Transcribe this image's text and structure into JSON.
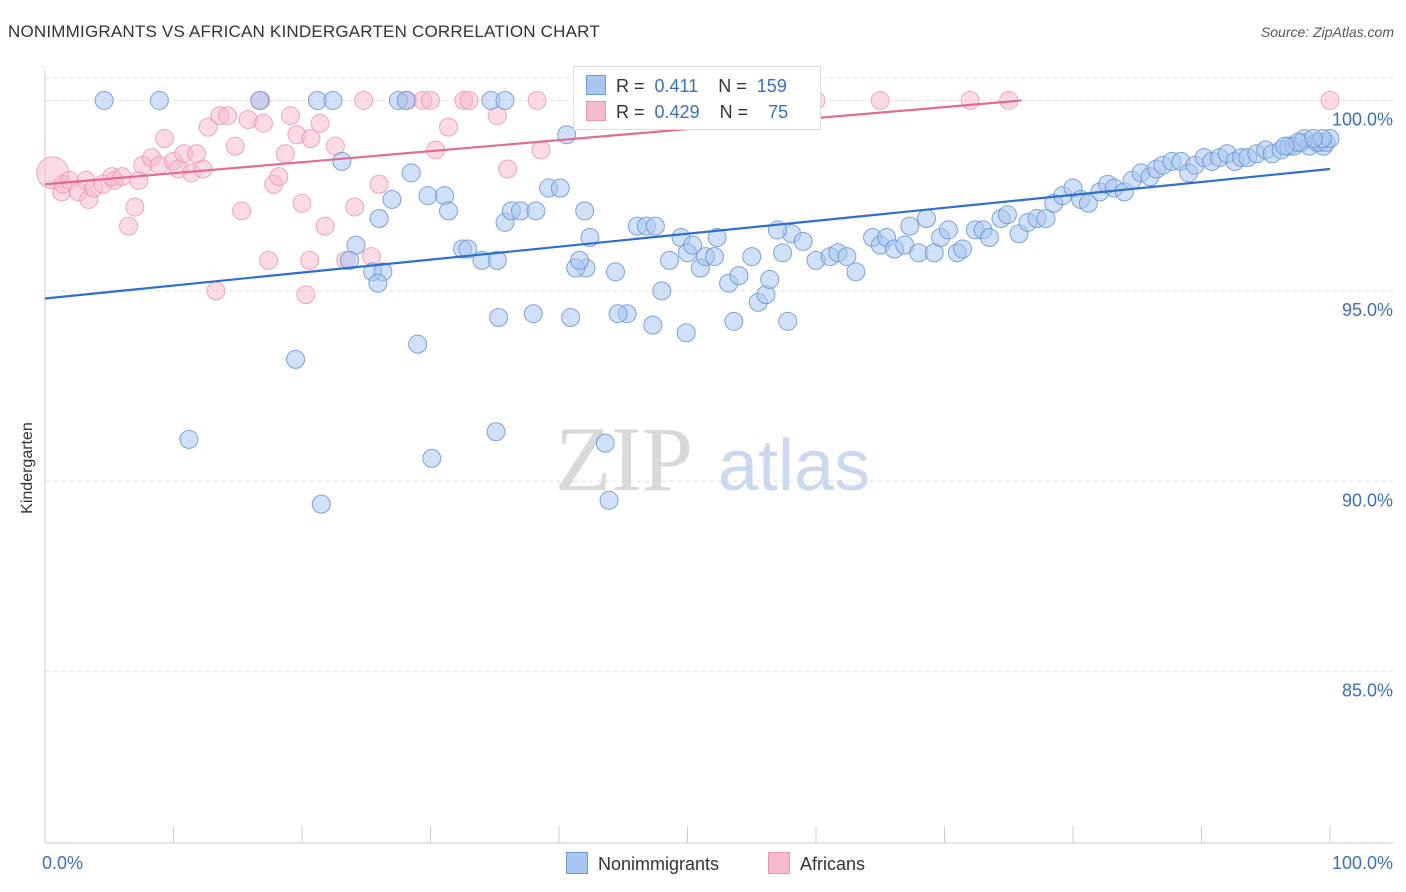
{
  "header": {
    "title": "NONIMMIGRANTS VS AFRICAN KINDERGARTEN CORRELATION CHART",
    "source": "Source: ZipAtlas.com"
  },
  "watermark": {
    "zip": "ZIP",
    "atlas": "atlas"
  },
  "colors": {
    "blue_fill": "#a9c6ef",
    "blue_stroke": "#6f9ad8",
    "blue_line": "#2f6fcc",
    "pink_fill": "#f6bccd",
    "pink_stroke": "#ec93ae",
    "pink_line": "#e06c92",
    "tick_label": "#3a6fc4",
    "grid": "#dddddd"
  },
  "stats": {
    "blue": {
      "r_label": "R =",
      "r_value": "0.411",
      "n_label": "N =",
      "n_value": "159"
    },
    "pink": {
      "r_label": "R =",
      "r_value": "0.429",
      "n_label": "N =",
      "n_value": "75"
    }
  },
  "legend": {
    "blue_label": "Nonimmigrants",
    "pink_label": "Africans"
  },
  "chart_data": {
    "type": "scatter",
    "title": "NONIMMIGRANTS VS AFRICAN KINDERGARTEN CORRELATION CHART",
    "xlabel": "",
    "ylabel": "Kindergarten",
    "xlim": [
      0,
      100
    ],
    "ylim": [
      80.5,
      100.8
    ],
    "x_tick_labels": [
      "0.0%",
      "100.0%"
    ],
    "y_ticks": [
      85,
      90,
      95,
      100
    ],
    "y_tick_labels": [
      "85.0%",
      "90.0%",
      "95.0%",
      "100.0%"
    ],
    "grid": true,
    "legend_position": "bottom-center",
    "series": [
      {
        "name": "Nonimmigrants",
        "color": "#6f9ad8",
        "trend": {
          "x": [
            0,
            100
          ],
          "y": [
            94.8,
            98.2
          ]
        },
        "points": [
          [
            4.6,
            100
          ],
          [
            8.9,
            100
          ],
          [
            16.7,
            100
          ],
          [
            21.2,
            100
          ],
          [
            22.4,
            100
          ],
          [
            27.5,
            100
          ],
          [
            28.1,
            100
          ],
          [
            34.7,
            100
          ],
          [
            35.8,
            100
          ],
          [
            40.6,
            99.1
          ],
          [
            23.1,
            98.4
          ],
          [
            28.5,
            98.1
          ],
          [
            27.0,
            97.4
          ],
          [
            29.8,
            97.5
          ],
          [
            31.1,
            97.5
          ],
          [
            31.4,
            97.1
          ],
          [
            26.0,
            96.9
          ],
          [
            24.2,
            96.2
          ],
          [
            23.7,
            95.8
          ],
          [
            25.5,
            95.5
          ],
          [
            26.3,
            95.5
          ],
          [
            25.9,
            95.2
          ],
          [
            32.5,
            96.1
          ],
          [
            32.9,
            96.1
          ],
          [
            34.0,
            95.8
          ],
          [
            35.2,
            95.8
          ],
          [
            35.8,
            96.8
          ],
          [
            36.3,
            97.1
          ],
          [
            37.0,
            97.1
          ],
          [
            38.2,
            97.1
          ],
          [
            39.2,
            97.7
          ],
          [
            40.1,
            97.7
          ],
          [
            42.0,
            97.1
          ],
          [
            42.1,
            95.6
          ],
          [
            41.3,
            95.6
          ],
          [
            41.6,
            95.8
          ],
          [
            42.4,
            96.4
          ],
          [
            44.4,
            95.5
          ],
          [
            46.1,
            96.7
          ],
          [
            46.8,
            96.7
          ],
          [
            47.5,
            96.7
          ],
          [
            48.0,
            95.0
          ],
          [
            48.6,
            95.8
          ],
          [
            49.5,
            96.4
          ],
          [
            50.0,
            96.0
          ],
          [
            50.4,
            96.2
          ],
          [
            51.0,
            95.6
          ],
          [
            51.4,
            95.9
          ],
          [
            52.1,
            95.9
          ],
          [
            52.3,
            96.4
          ],
          [
            53.2,
            95.2
          ],
          [
            54.0,
            95.4
          ],
          [
            55.0,
            95.9
          ],
          [
            55.5,
            94.7
          ],
          [
            56.1,
            94.9
          ],
          [
            56.4,
            95.3
          ],
          [
            57.4,
            96.0
          ],
          [
            58.1,
            96.5
          ],
          [
            57.0,
            96.6
          ],
          [
            59.0,
            96.3
          ],
          [
            60.0,
            95.8
          ],
          [
            61.1,
            95.9
          ],
          [
            61.7,
            96.0
          ],
          [
            62.4,
            95.9
          ],
          [
            63.1,
            95.5
          ],
          [
            64.4,
            96.4
          ],
          [
            65.0,
            96.2
          ],
          [
            65.5,
            96.4
          ],
          [
            66.1,
            96.1
          ],
          [
            66.9,
            96.2
          ],
          [
            67.3,
            96.7
          ],
          [
            68.0,
            96.0
          ],
          [
            68.6,
            96.9
          ],
          [
            69.2,
            96.0
          ],
          [
            69.7,
            96.4
          ],
          [
            70.3,
            96.6
          ],
          [
            71.0,
            96.0
          ],
          [
            71.4,
            96.1
          ],
          [
            72.4,
            96.6
          ],
          [
            73.0,
            96.6
          ],
          [
            73.5,
            96.4
          ],
          [
            74.4,
            96.9
          ],
          [
            74.9,
            97.0
          ],
          [
            75.8,
            96.5
          ],
          [
            76.5,
            96.8
          ],
          [
            77.2,
            96.9
          ],
          [
            77.9,
            96.9
          ],
          [
            78.5,
            97.3
          ],
          [
            79.2,
            97.5
          ],
          [
            80.0,
            97.7
          ],
          [
            80.6,
            97.4
          ],
          [
            81.2,
            97.3
          ],
          [
            82.1,
            97.6
          ],
          [
            82.7,
            97.8
          ],
          [
            83.2,
            97.7
          ],
          [
            84.0,
            97.6
          ],
          [
            84.6,
            97.9
          ],
          [
            85.3,
            98.1
          ],
          [
            86.0,
            98.0
          ],
          [
            86.5,
            98.2
          ],
          [
            87.0,
            98.3
          ],
          [
            87.7,
            98.4
          ],
          [
            88.4,
            98.4
          ],
          [
            89.0,
            98.1
          ],
          [
            89.5,
            98.3
          ],
          [
            90.2,
            98.5
          ],
          [
            90.8,
            98.4
          ],
          [
            91.4,
            98.5
          ],
          [
            92.0,
            98.6
          ],
          [
            92.6,
            98.4
          ],
          [
            93.1,
            98.5
          ],
          [
            93.6,
            98.5
          ],
          [
            94.3,
            98.6
          ],
          [
            95.0,
            98.7
          ],
          [
            95.5,
            98.6
          ],
          [
            96.2,
            98.7
          ],
          [
            96.8,
            98.8
          ],
          [
            97.2,
            98.8
          ],
          [
            97.8,
            98.9
          ],
          [
            98.4,
            98.8
          ],
          [
            99.0,
            98.9
          ],
          [
            99.5,
            98.8
          ],
          [
            98.0,
            99.0
          ],
          [
            99.2,
            98.9
          ],
          [
            99.7,
            98.9
          ],
          [
            100.0,
            99.0
          ],
          [
            99.4,
            99.0
          ],
          [
            98.7,
            99.0
          ],
          [
            97.5,
            98.9
          ],
          [
            96.5,
            98.8
          ],
          [
            45.3,
            94.4
          ],
          [
            44.6,
            94.4
          ],
          [
            47.3,
            94.1
          ],
          [
            40.9,
            94.3
          ],
          [
            38.0,
            94.4
          ],
          [
            35.3,
            94.3
          ],
          [
            29.0,
            93.6
          ],
          [
            19.5,
            93.2
          ],
          [
            57.8,
            94.2
          ],
          [
            53.6,
            94.2
          ],
          [
            49.9,
            93.9
          ],
          [
            11.2,
            91.1
          ],
          [
            30.1,
            90.6
          ],
          [
            35.1,
            91.3
          ],
          [
            43.6,
            91.0
          ],
          [
            21.5,
            89.4
          ],
          [
            43.9,
            89.5
          ]
        ]
      },
      {
        "name": "Africans",
        "color": "#ec93ae",
        "trend": {
          "x": [
            0,
            76
          ],
          "y": [
            97.8,
            100
          ]
        },
        "points": [
          [
            0.6,
            98.1
          ],
          [
            1.3,
            97.6
          ],
          [
            1.4,
            97.8
          ],
          [
            1.9,
            97.9
          ],
          [
            2.6,
            97.6
          ],
          [
            3.2,
            97.9
          ],
          [
            3.4,
            97.4
          ],
          [
            3.8,
            97.7
          ],
          [
            4.5,
            97.8
          ],
          [
            5.4,
            97.9
          ],
          [
            5.2,
            98.0
          ],
          [
            6.0,
            98.0
          ],
          [
            7.0,
            97.2
          ],
          [
            7.3,
            97.9
          ],
          [
            7.6,
            98.3
          ],
          [
            8.3,
            98.5
          ],
          [
            8.9,
            98.3
          ],
          [
            9.3,
            99.0
          ],
          [
            10.0,
            98.4
          ],
          [
            10.4,
            98.2
          ],
          [
            10.8,
            98.6
          ],
          [
            11.4,
            98.1
          ],
          [
            11.8,
            98.6
          ],
          [
            12.3,
            98.2
          ],
          [
            12.7,
            99.3
          ],
          [
            13.6,
            99.6
          ],
          [
            14.2,
            99.6
          ],
          [
            14.8,
            98.8
          ],
          [
            15.3,
            97.1
          ],
          [
            15.8,
            99.5
          ],
          [
            16.8,
            100
          ],
          [
            17.0,
            99.4
          ],
          [
            17.4,
            95.8
          ],
          [
            17.8,
            97.8
          ],
          [
            18.2,
            98.0
          ],
          [
            18.7,
            98.6
          ],
          [
            19.1,
            99.6
          ],
          [
            19.6,
            99.1
          ],
          [
            20.0,
            97.3
          ],
          [
            20.6,
            95.8
          ],
          [
            20.7,
            99.0
          ],
          [
            21.4,
            99.4
          ],
          [
            21.8,
            96.7
          ],
          [
            22.6,
            98.8
          ],
          [
            23.4,
            95.8
          ],
          [
            24.1,
            97.2
          ],
          [
            24.8,
            100
          ],
          [
            25.4,
            95.9
          ],
          [
            26.0,
            97.8
          ],
          [
            28.2,
            100
          ],
          [
            29.4,
            100
          ],
          [
            30.0,
            100
          ],
          [
            30.4,
            98.7
          ],
          [
            31.4,
            99.3
          ],
          [
            32.6,
            100
          ],
          [
            33.0,
            100
          ],
          [
            35.2,
            99.6
          ],
          [
            36.0,
            98.2
          ],
          [
            38.3,
            100
          ],
          [
            38.6,
            98.7
          ],
          [
            43.0,
            100
          ],
          [
            47.0,
            100
          ],
          [
            51.0,
            100
          ],
          [
            54.0,
            100
          ],
          [
            55.0,
            100
          ],
          [
            57.0,
            100
          ],
          [
            59.0,
            100
          ],
          [
            60.0,
            100
          ],
          [
            65.0,
            100
          ],
          [
            72.0,
            100
          ],
          [
            75.0,
            100
          ],
          [
            100.0,
            100
          ],
          [
            6.5,
            96.7
          ],
          [
            13.3,
            95.0
          ],
          [
            20.3,
            94.9
          ]
        ]
      }
    ]
  }
}
